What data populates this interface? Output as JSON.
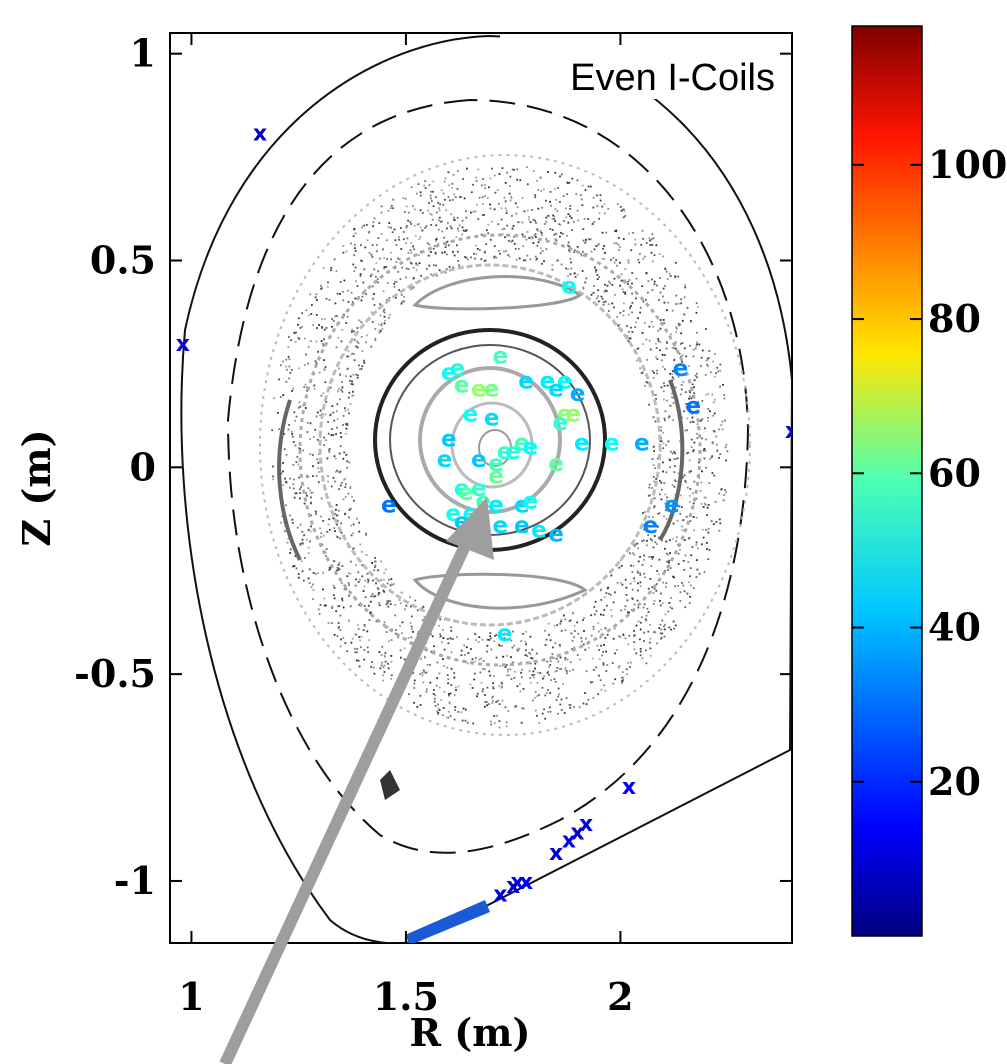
{
  "chart_data": {
    "type": "scatter",
    "title": "",
    "inset_label": "Even I-Coils",
    "xlabel": "R (m)",
    "ylabel": "Z (m)",
    "xlim": [
      0.95,
      2.4
    ],
    "ylim": [
      -1.15,
      1.05
    ],
    "x_ticks": [
      {
        "value": 1,
        "label": "1"
      },
      {
        "value": 1.5,
        "label": "1.5"
      },
      {
        "value": 2,
        "label": "2"
      }
    ],
    "y_ticks": [
      {
        "value": 1,
        "label": "1"
      },
      {
        "value": 0.5,
        "label": "0.5"
      },
      {
        "value": 0,
        "label": "0"
      },
      {
        "value": -0.5,
        "label": "-0.5"
      },
      {
        "value": -1,
        "label": "-1"
      }
    ],
    "colorbar": {
      "min": 0,
      "max": 118,
      "ticks": [
        {
          "value": 20,
          "label": "20"
        },
        {
          "value": 40,
          "label": "40"
        },
        {
          "value": 60,
          "label": "60"
        },
        {
          "value": 80,
          "label": "80"
        },
        {
          "value": 100,
          "label": "100"
        }
      ],
      "colormap": "jet"
    },
    "series": [
      {
        "marker": "e",
        "points": [
          [
            1.88,
            0.44,
            45
          ],
          [
            1.72,
            0.27,
            52
          ],
          [
            1.62,
            0.24,
            48
          ],
          [
            1.6,
            0.23,
            45
          ],
          [
            1.63,
            0.2,
            55
          ],
          [
            1.67,
            0.19,
            62
          ],
          [
            1.7,
            0.19,
            58
          ],
          [
            1.78,
            0.21,
            40
          ],
          [
            1.83,
            0.21,
            42
          ],
          [
            1.87,
            0.21,
            44
          ],
          [
            1.85,
            0.19,
            40
          ],
          [
            1.9,
            0.18,
            35
          ],
          [
            2.14,
            0.24,
            30
          ],
          [
            2.17,
            0.15,
            28
          ],
          [
            1.65,
            0.13,
            45
          ],
          [
            1.7,
            0.12,
            40
          ],
          [
            1.87,
            0.13,
            60
          ],
          [
            1.89,
            0.13,
            62
          ],
          [
            1.86,
            0.11,
            50
          ],
          [
            1.6,
            0.07,
            38
          ],
          [
            1.77,
            0.06,
            52
          ],
          [
            1.79,
            0.05,
            44
          ],
          [
            1.73,
            0.04,
            50
          ],
          [
            1.75,
            0.04,
            48
          ],
          [
            1.91,
            0.06,
            42
          ],
          [
            1.98,
            0.06,
            45
          ],
          [
            2.05,
            0.06,
            35
          ],
          [
            1.59,
            0.02,
            40
          ],
          [
            1.67,
            0.02,
            38
          ],
          [
            1.71,
            0.01,
            52
          ],
          [
            1.85,
            0.01,
            55
          ],
          [
            1.71,
            -0.02,
            56
          ],
          [
            1.46,
            -0.09,
            28
          ],
          [
            1.63,
            -0.05,
            48
          ],
          [
            1.67,
            -0.05,
            50
          ],
          [
            1.64,
            -0.06,
            55
          ],
          [
            1.68,
            -0.08,
            52
          ],
          [
            1.65,
            -0.11,
            44
          ],
          [
            1.71,
            -0.09,
            42
          ],
          [
            1.77,
            -0.09,
            40
          ],
          [
            1.79,
            -0.08,
            45
          ],
          [
            1.61,
            -0.11,
            46
          ],
          [
            1.63,
            -0.13,
            38
          ],
          [
            1.72,
            -0.14,
            40
          ],
          [
            1.77,
            -0.14,
            38
          ],
          [
            1.81,
            -0.15,
            42
          ],
          [
            1.85,
            -0.16,
            36
          ],
          [
            2.07,
            -0.14,
            30
          ],
          [
            2.12,
            -0.09,
            32
          ],
          [
            1.73,
            -0.4,
            42
          ]
        ]
      },
      {
        "marker": "x",
        "points": [
          [
            1.16,
            0.81,
            8
          ],
          [
            0.98,
            0.3,
            10
          ],
          [
            2.4,
            0.09,
            12
          ],
          [
            2.02,
            -0.77,
            14
          ],
          [
            1.92,
            -0.86,
            12
          ],
          [
            1.9,
            -0.88,
            10
          ],
          [
            1.88,
            -0.9,
            12
          ],
          [
            1.85,
            -0.93,
            10
          ],
          [
            1.78,
            -1.0,
            14
          ],
          [
            1.76,
            -1.0,
            12
          ],
          [
            1.75,
            -1.01,
            10
          ],
          [
            1.72,
            -1.03,
            12
          ]
        ]
      }
    ]
  }
}
